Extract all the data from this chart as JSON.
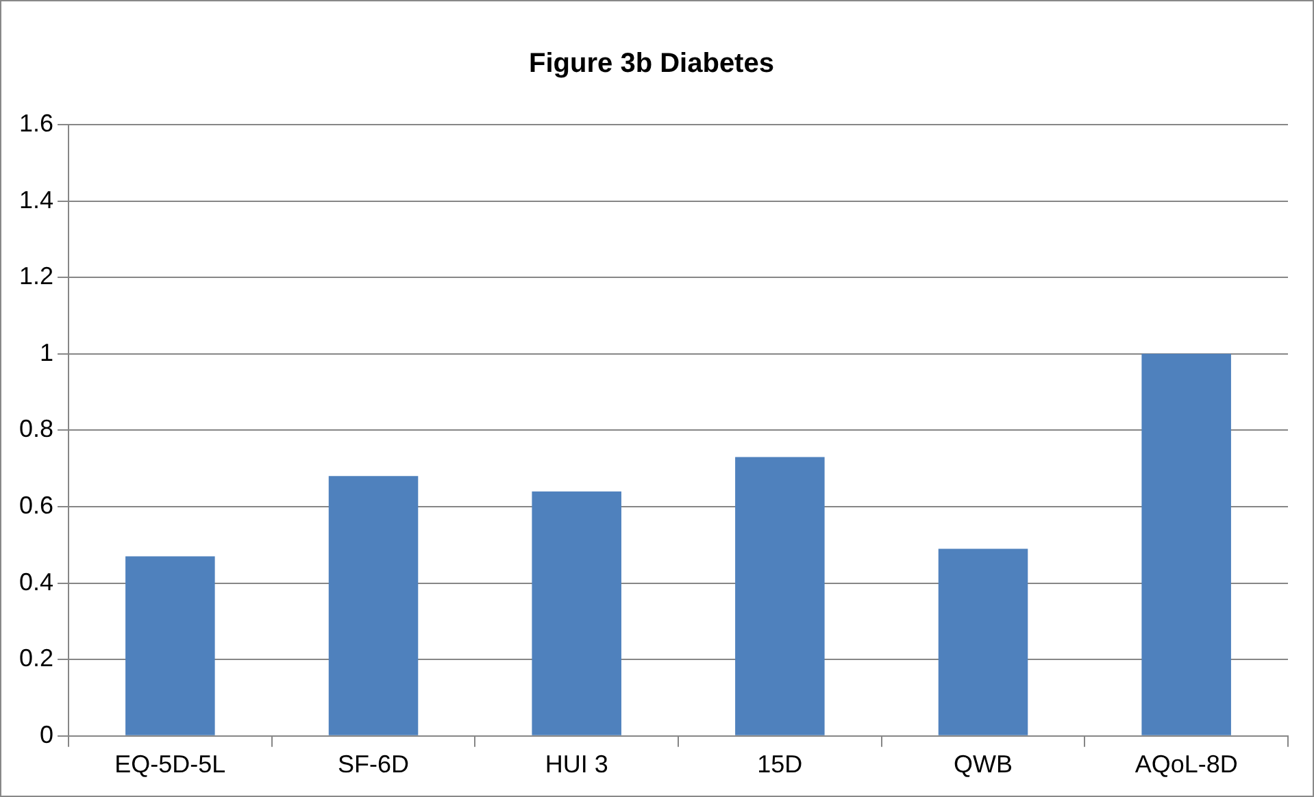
{
  "chart_data": {
    "type": "bar",
    "title": "Figure 3b Diabetes",
    "categories": [
      "EQ-5D-5L",
      "SF-6D",
      "HUI 3",
      "15D",
      "QWB",
      "AQoL-8D"
    ],
    "values": [
      0.47,
      0.68,
      0.64,
      0.73,
      0.49,
      1.0
    ],
    "color": "#4f81bd",
    "ylim": [
      0,
      1.6
    ],
    "yticks": [
      0,
      0.2,
      0.4,
      0.6,
      0.8,
      1,
      1.2,
      1.4,
      1.6
    ],
    "grid": "y",
    "legend": false
  }
}
